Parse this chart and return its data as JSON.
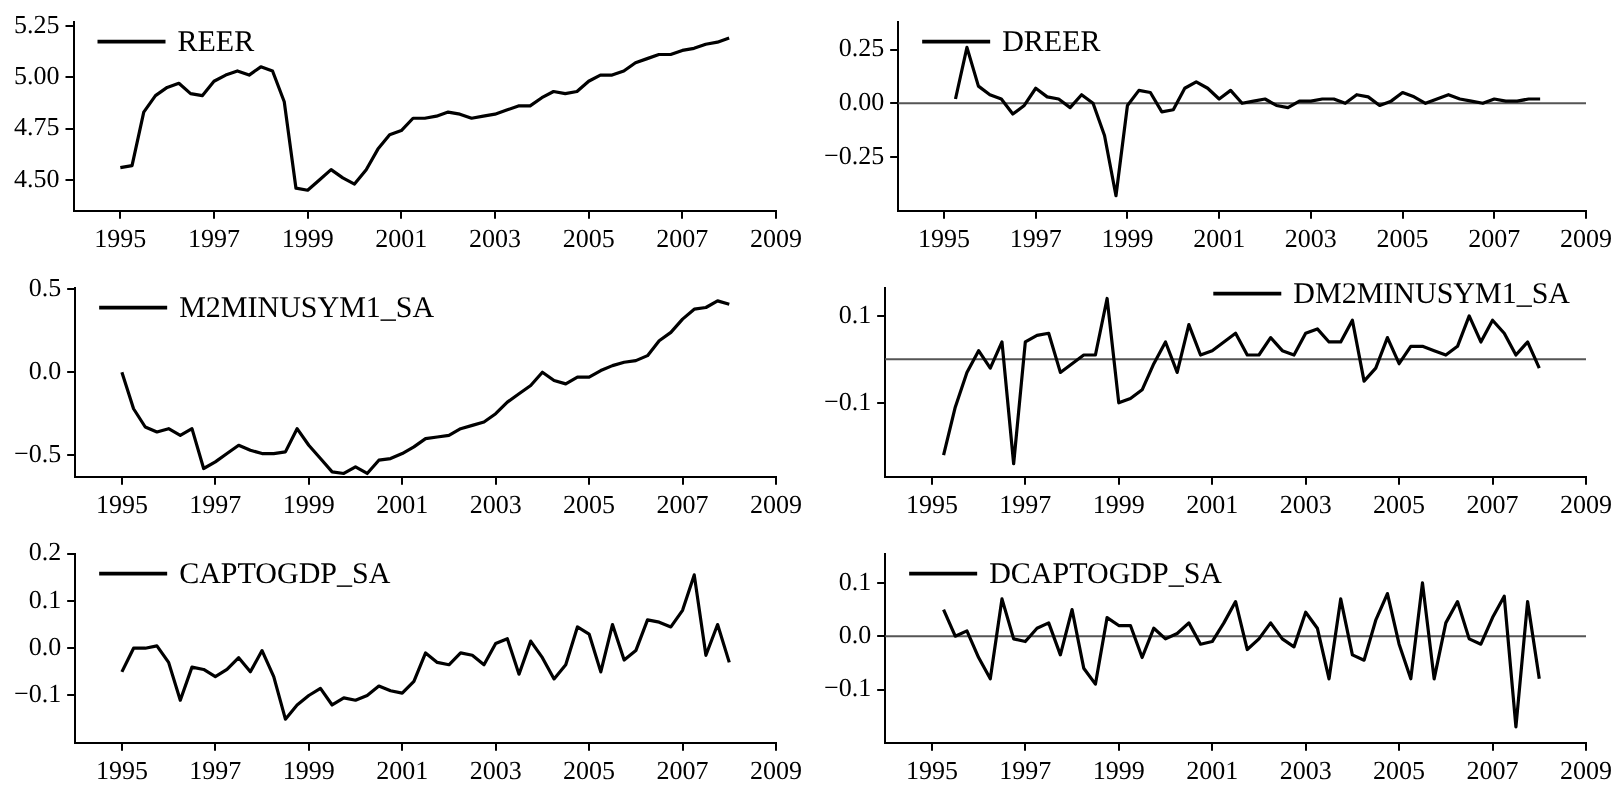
{
  "chart_data": [
    {
      "type": "line",
      "xlim": [
        1994,
        2009
      ],
      "xticks": [
        1995,
        1997,
        1999,
        2001,
        2003,
        2005,
        2007,
        2009
      ],
      "ylim": [
        4.35,
        5.27
      ],
      "yticks": [
        {
          "value": 4.5,
          "label": "4.50"
        },
        {
          "value": 4.75,
          "label": "4.75"
        },
        {
          "value": 5,
          "label": "5.00"
        },
        {
          "value": 5.25,
          "label": "5.25"
        }
      ],
      "legend": "top left",
      "grid": false,
      "marker": "none",
      "line_style": "solid",
      "x": [
        1995,
        1995.25,
        1995.5,
        1995.75,
        1996,
        1996.25,
        1996.5,
        1996.75,
        1997,
        1997.25,
        1997.5,
        1997.75,
        1998,
        1998.25,
        1998.5,
        1998.75,
        1999,
        1999.25,
        1999.5,
        1999.75,
        2000,
        2000.25,
        2000.5,
        2000.75,
        2001,
        2001.25,
        2001.5,
        2001.75,
        2002,
        2002.25,
        2002.5,
        2002.75,
        2003,
        2003.25,
        2003.5,
        2003.75,
        2004,
        2004.25,
        2004.5,
        2004.75,
        2005,
        2005.25,
        2005.5,
        2005.75,
        2006,
        2006.25,
        2006.5,
        2006.75,
        2007,
        2007.25,
        2007.5,
        2007.75,
        2008
      ],
      "series": [
        {
          "name": "REER",
          "color": "#000000",
          "values": [
            4.56,
            4.57,
            4.83,
            4.91,
            4.95,
            4.97,
            4.92,
            4.91,
            4.98,
            5.01,
            5.03,
            5.01,
            5.05,
            5.03,
            4.88,
            4.46,
            4.45,
            4.5,
            4.55,
            4.51,
            4.48,
            4.55,
            4.65,
            4.72,
            4.74,
            4.8,
            4.8,
            4.81,
            4.83,
            4.82,
            4.8,
            4.81,
            4.82,
            4.84,
            4.86,
            4.86,
            4.9,
            4.93,
            4.92,
            4.93,
            4.98,
            5.01,
            5.01,
            5.03,
            5.07,
            5.09,
            5.11,
            5.11,
            5.13,
            5.14,
            5.16,
            5.17,
            5.19
          ]
        }
      ]
    },
    {
      "type": "line",
      "xlim": [
        1994,
        2009
      ],
      "xticks": [
        1995,
        1997,
        1999,
        2001,
        2003,
        2005,
        2007,
        2009
      ],
      "ylim": [
        -0.5,
        0.38
      ],
      "yticks": [
        {
          "value": -0.25,
          "label": "−0.25"
        },
        {
          "value": 0,
          "label": "0.00"
        },
        {
          "value": 0.25,
          "label": "0.25"
        }
      ],
      "legend": "top left",
      "grid": false,
      "marker": "none",
      "line_style": "solid",
      "ref_lines": [
        {
          "axis": "y",
          "value": 0,
          "color": "#555555"
        }
      ],
      "x": [
        1995.25,
        1995.5,
        1995.75,
        1996,
        1996.25,
        1996.5,
        1996.75,
        1997,
        1997.25,
        1997.5,
        1997.75,
        1998,
        1998.25,
        1998.5,
        1998.75,
        1999,
        1999.25,
        1999.5,
        1999.75,
        2000,
        2000.25,
        2000.5,
        2000.75,
        2001,
        2001.25,
        2001.5,
        2001.75,
        2002,
        2002.25,
        2002.5,
        2002.75,
        2003,
        2003.25,
        2003.5,
        2003.75,
        2004,
        2004.25,
        2004.5,
        2004.75,
        2005,
        2005.25,
        2005.5,
        2005.75,
        2006,
        2006.25,
        2006.5,
        2006.75,
        2007,
        2007.25,
        2007.5,
        2007.75,
        2008
      ],
      "series": [
        {
          "name": "DREER",
          "color": "#000000",
          "values": [
            0.02,
            0.26,
            0.08,
            0.04,
            0.02,
            -0.05,
            -0.01,
            0.07,
            0.03,
            0.02,
            -0.02,
            0.04,
            0,
            -0.15,
            -0.43,
            -0.01,
            0.06,
            0.05,
            -0.04,
            -0.03,
            0.07,
            0.1,
            0.07,
            0.02,
            0.06,
            0,
            0.01,
            0.02,
            -0.01,
            -0.02,
            0.01,
            0.01,
            0.02,
            0.02,
            0,
            0.04,
            0.03,
            -0.01,
            0.01,
            0.05,
            0.03,
            0,
            0.02,
            0.04,
            0.02,
            0.01,
            0,
            0.02,
            0.01,
            0.01,
            0.02,
            0.02
          ]
        }
      ]
    },
    {
      "type": "line",
      "xlim": [
        1994,
        2009
      ],
      "xticks": [
        1995,
        1997,
        1999,
        2001,
        2003,
        2005,
        2007,
        2009
      ],
      "ylim": [
        -0.63,
        0.51
      ],
      "yticks": [
        {
          "value": -0.5,
          "label": "−0.5"
        },
        {
          "value": 0,
          "label": "0.0"
        },
        {
          "value": 0.5,
          "label": "0.5"
        }
      ],
      "legend": "top left",
      "grid": false,
      "marker": "none",
      "line_style": "solid",
      "x": [
        1995,
        1995.25,
        1995.5,
        1995.75,
        1996,
        1996.25,
        1996.5,
        1996.75,
        1997,
        1997.25,
        1997.5,
        1997.75,
        1998,
        1998.25,
        1998.5,
        1998.75,
        1999,
        1999.25,
        1999.5,
        1999.75,
        2000,
        2000.25,
        2000.5,
        2000.75,
        2001,
        2001.25,
        2001.5,
        2001.75,
        2002,
        2002.25,
        2002.5,
        2002.75,
        2003,
        2003.25,
        2003.5,
        2003.75,
        2004,
        2004.25,
        2004.5,
        2004.75,
        2005,
        2005.25,
        2005.5,
        2005.75,
        2006,
        2006.25,
        2006.5,
        2006.75,
        2007,
        2007.25,
        2007.5,
        2007.75,
        2008
      ],
      "series": [
        {
          "name": "M2MINUSYM1_SA",
          "color": "#000000",
          "values": [
            0,
            -0.22,
            -0.33,
            -0.36,
            -0.34,
            -0.38,
            -0.34,
            -0.58,
            -0.54,
            -0.49,
            -0.44,
            -0.47,
            -0.49,
            -0.49,
            -0.48,
            -0.34,
            -0.44,
            -0.52,
            -0.6,
            -0.61,
            -0.57,
            -0.61,
            -0.53,
            -0.52,
            -0.49,
            -0.45,
            -0.4,
            -0.39,
            -0.38,
            -0.34,
            -0.32,
            -0.3,
            -0.25,
            -0.18,
            -0.13,
            -0.08,
            0,
            -0.05,
            -0.07,
            -0.03,
            -0.03,
            0.01,
            0.04,
            0.06,
            0.07,
            0.1,
            0.19,
            0.24,
            0.32,
            0.38,
            0.39,
            0.43,
            0.41
          ]
        }
      ]
    },
    {
      "type": "line",
      "xlim": [
        1994,
        2009
      ],
      "xticks": [
        1995,
        1997,
        1999,
        2001,
        2003,
        2005,
        2007,
        2009
      ],
      "ylim": [
        -0.27,
        0.165
      ],
      "yticks": [
        {
          "value": -0.1,
          "label": "−0.1"
        },
        {
          "value": 0.1,
          "label": "0.1"
        }
      ],
      "legend": "top right",
      "grid": false,
      "marker": "none",
      "line_style": "solid",
      "ref_lines": [
        {
          "axis": "y",
          "value": 0,
          "color": "#555555"
        }
      ],
      "x": [
        1995.25,
        1995.5,
        1995.75,
        1996,
        1996.25,
        1996.5,
        1996.75,
        1997,
        1997.25,
        1997.5,
        1997.75,
        1998,
        1998.25,
        1998.5,
        1998.75,
        1999,
        1999.25,
        1999.5,
        1999.75,
        2000,
        2000.25,
        2000.5,
        2000.75,
        2001,
        2001.25,
        2001.5,
        2001.75,
        2002,
        2002.25,
        2002.5,
        2002.75,
        2003,
        2003.25,
        2003.5,
        2003.75,
        2004,
        2004.25,
        2004.5,
        2004.75,
        2005,
        2005.25,
        2005.5,
        2005.75,
        2006,
        2006.25,
        2006.5,
        2006.75,
        2007,
        2007.25,
        2007.5,
        2007.75,
        2008
      ],
      "series": [
        {
          "name": "DM2MINUSYM1_SA",
          "color": "#000000",
          "values": [
            -0.22,
            -0.11,
            -0.03,
            0.02,
            -0.02,
            0.04,
            -0.24,
            0.04,
            0.055,
            0.06,
            -0.03,
            -0.01,
            0.01,
            0.01,
            0.14,
            -0.1,
            -0.09,
            -0.07,
            -0.01,
            0.04,
            -0.03,
            0.08,
            0.01,
            0.02,
            0.04,
            0.06,
            0.01,
            0.01,
            0.05,
            0.02,
            0.01,
            0.06,
            0.07,
            0.04,
            0.04,
            0.09,
            -0.05,
            -0.02,
            0.05,
            -0.01,
            0.03,
            0.03,
            0.02,
            0.01,
            0.03,
            0.1,
            0.04,
            0.09,
            0.06,
            0.01,
            0.04,
            -0.02
          ]
        }
      ]
    },
    {
      "type": "line",
      "xlim": [
        1994,
        2009
      ],
      "xticks": [
        1995,
        1997,
        1999,
        2001,
        2003,
        2005,
        2007,
        2009
      ],
      "ylim": [
        -0.2,
        0.2
      ],
      "yticks": [
        {
          "value": -0.1,
          "label": "−0.1"
        },
        {
          "value": 0,
          "label": "0.0"
        },
        {
          "value": 0.1,
          "label": "0.1"
        },
        {
          "value": 0.2,
          "label": "0.2"
        }
      ],
      "legend": "top left",
      "grid": false,
      "marker": "none",
      "line_style": "solid",
      "x": [
        1995,
        1995.25,
        1995.5,
        1995.75,
        1996,
        1996.25,
        1996.5,
        1996.75,
        1997,
        1997.25,
        1997.5,
        1997.75,
        1998,
        1998.25,
        1998.5,
        1998.75,
        1999,
        1999.25,
        1999.5,
        1999.75,
        2000,
        2000.25,
        2000.5,
        2000.75,
        2001,
        2001.25,
        2001.5,
        2001.75,
        2002,
        2002.25,
        2002.5,
        2002.75,
        2003,
        2003.25,
        2003.5,
        2003.75,
        2004,
        2004.25,
        2004.5,
        2004.75,
        2005,
        2005.25,
        2005.5,
        2005.75,
        2006,
        2006.25,
        2006.5,
        2006.75,
        2007,
        2007.25,
        2007.5,
        2007.75,
        2008
      ],
      "series": [
        {
          "name": "CAPTOGDP_SA",
          "color": "#000000",
          "values": [
            -0.05,
            0,
            0,
            0.005,
            -0.03,
            -0.11,
            -0.04,
            -0.045,
            -0.06,
            -0.045,
            -0.02,
            -0.05,
            -0.005,
            -0.06,
            -0.15,
            -0.12,
            -0.1,
            -0.085,
            -0.12,
            -0.105,
            -0.11,
            -0.1,
            -0.08,
            -0.09,
            -0.095,
            -0.07,
            -0.01,
            -0.03,
            -0.035,
            -0.01,
            -0.015,
            -0.035,
            0.01,
            0.02,
            -0.055,
            0.015,
            -0.02,
            -0.065,
            -0.035,
            0.045,
            0.03,
            -0.05,
            0.05,
            -0.025,
            -0.005,
            0.06,
            0.055,
            0.045,
            0.08,
            0.155,
            -0.015,
            0.05,
            -0.03
          ]
        }
      ]
    },
    {
      "type": "line",
      "xlim": [
        1994,
        2009
      ],
      "xticks": [
        1995,
        1997,
        1999,
        2001,
        2003,
        2005,
        2007,
        2009
      ],
      "ylim": [
        -0.2,
        0.155
      ],
      "yticks": [
        {
          "value": -0.1,
          "label": "−0.1"
        },
        {
          "value": 0,
          "label": "0.0"
        },
        {
          "value": 0.1,
          "label": "0.1"
        }
      ],
      "legend": "top left",
      "grid": false,
      "marker": "none",
      "line_style": "solid",
      "ref_lines": [
        {
          "axis": "y",
          "value": 0,
          "color": "#555555"
        }
      ],
      "x": [
        1995.25,
        1995.5,
        1995.75,
        1996,
        1996.25,
        1996.5,
        1996.75,
        1997,
        1997.25,
        1997.5,
        1997.75,
        1998,
        1998.25,
        1998.5,
        1998.75,
        1999,
        1999.25,
        1999.5,
        1999.75,
        2000,
        2000.25,
        2000.5,
        2000.75,
        2001,
        2001.25,
        2001.5,
        2001.75,
        2002,
        2002.25,
        2002.5,
        2002.75,
        2003,
        2003.25,
        2003.5,
        2003.75,
        2004,
        2004.25,
        2004.5,
        2004.75,
        2005,
        2005.25,
        2005.5,
        2005.75,
        2006,
        2006.25,
        2006.5,
        2006.75,
        2007,
        2007.25,
        2007.5,
        2007.75,
        2008
      ],
      "series": [
        {
          "name": "DCAPTOGDP_SA",
          "color": "#000000",
          "values": [
            0.05,
            0,
            0.01,
            -0.04,
            -0.08,
            0.07,
            -0.005,
            -0.01,
            0.015,
            0.025,
            -0.035,
            0.05,
            -0.06,
            -0.09,
            0.035,
            0.02,
            0.02,
            -0.04,
            0.015,
            -0.005,
            0.005,
            0.025,
            -0.015,
            -0.01,
            0.025,
            0.065,
            -0.025,
            -0.005,
            0.025,
            -0.005,
            -0.02,
            0.045,
            0.015,
            -0.08,
            0.07,
            -0.035,
            -0.045,
            0.03,
            0.08,
            -0.015,
            -0.08,
            0.1,
            -0.08,
            0.025,
            0.065,
            -0.005,
            -0.015,
            0.035,
            0.075,
            -0.17,
            0.065,
            -0.08
          ]
        }
      ]
    }
  ]
}
